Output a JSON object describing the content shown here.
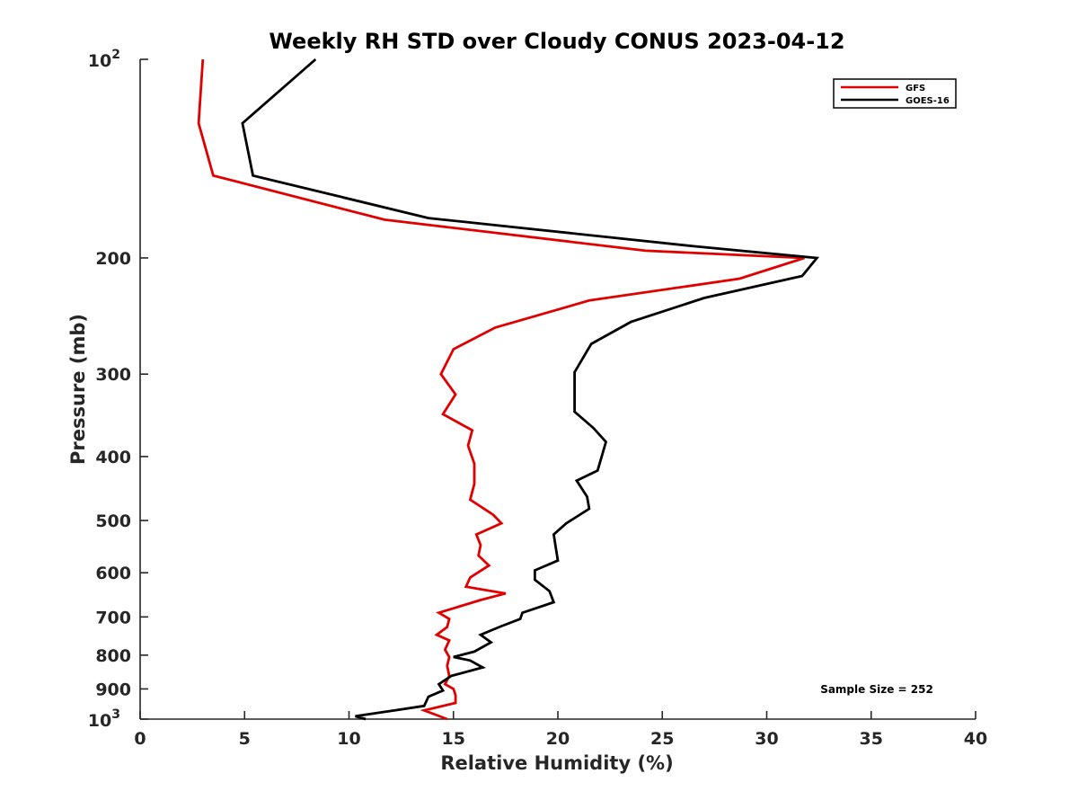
{
  "chart_data": {
    "type": "line",
    "title": "Weekly RH STD over Cloudy CONUS 2023-04-12",
    "xlabel": "Relative Humidity (%)",
    "ylabel": "Pressure (mb)",
    "xlim": [
      0,
      40
    ],
    "ylim": [
      100,
      1000
    ],
    "y_scale": "log",
    "y_reversed": true,
    "grid": false,
    "legend_position": "top-right",
    "x_ticks": [
      0,
      5,
      10,
      15,
      20,
      25,
      30,
      35,
      40
    ],
    "y_ticks": [
      {
        "value": 100,
        "label": "10",
        "exp": "2"
      },
      {
        "value": 200,
        "label": "200"
      },
      {
        "value": 300,
        "label": "300"
      },
      {
        "value": 400,
        "label": "400"
      },
      {
        "value": 500,
        "label": "500"
      },
      {
        "value": 600,
        "label": "600"
      },
      {
        "value": 700,
        "label": "700"
      },
      {
        "value": 800,
        "label": "800"
      },
      {
        "value": 900,
        "label": "900"
      },
      {
        "value": 1000,
        "label": "10",
        "exp": "3"
      }
    ],
    "annotation": "Sample Size = 252",
    "series": [
      {
        "name": "GFS",
        "color": "#e00000",
        "points": [
          [
            3.0,
            100
          ],
          [
            2.8,
            125
          ],
          [
            3.5,
            150
          ],
          [
            11.7,
            175
          ],
          [
            24.2,
            195
          ],
          [
            31.8,
            200
          ],
          [
            28.7,
            215
          ],
          [
            21.5,
            232
          ],
          [
            17.0,
            255
          ],
          [
            15.0,
            275
          ],
          [
            14.4,
            300
          ],
          [
            15.1,
            322
          ],
          [
            14.5,
            345
          ],
          [
            15.9,
            365
          ],
          [
            15.7,
            385
          ],
          [
            16.0,
            410
          ],
          [
            16.0,
            440
          ],
          [
            15.8,
            465
          ],
          [
            16.9,
            490
          ],
          [
            17.3,
            505
          ],
          [
            16.1,
            525
          ],
          [
            16.3,
            545
          ],
          [
            16.2,
            565
          ],
          [
            16.7,
            585
          ],
          [
            15.8,
            610
          ],
          [
            15.6,
            630
          ],
          [
            17.5,
            645
          ],
          [
            16.3,
            660
          ],
          [
            14.3,
            690
          ],
          [
            14.8,
            705
          ],
          [
            14.7,
            725
          ],
          [
            14.2,
            745
          ],
          [
            14.8,
            760
          ],
          [
            14.6,
            785
          ],
          [
            14.8,
            805
          ],
          [
            14.7,
            830
          ],
          [
            14.8,
            860
          ],
          [
            14.6,
            885
          ],
          [
            15.0,
            900
          ],
          [
            15.1,
            920
          ],
          [
            15.1,
            945
          ],
          [
            13.6,
            970
          ],
          [
            14.7,
            1000
          ]
        ]
      },
      {
        "name": "GOES-16",
        "color": "#000000",
        "points": [
          [
            8.4,
            100
          ],
          [
            4.9,
            125
          ],
          [
            5.4,
            150
          ],
          [
            13.8,
            174
          ],
          [
            26.5,
            192
          ],
          [
            32.4,
            200
          ],
          [
            31.7,
            213
          ],
          [
            27.0,
            230
          ],
          [
            23.5,
            250
          ],
          [
            21.6,
            270
          ],
          [
            20.8,
            298
          ],
          [
            20.8,
            320
          ],
          [
            20.8,
            342
          ],
          [
            21.7,
            362
          ],
          [
            22.3,
            380
          ],
          [
            22.1,
            400
          ],
          [
            21.9,
            420
          ],
          [
            20.9,
            435
          ],
          [
            21.4,
            460
          ],
          [
            21.5,
            480
          ],
          [
            20.4,
            505
          ],
          [
            19.8,
            525
          ],
          [
            19.9,
            550
          ],
          [
            20.0,
            575
          ],
          [
            18.9,
            595
          ],
          [
            18.9,
            615
          ],
          [
            19.6,
            640
          ],
          [
            19.8,
            665
          ],
          [
            18.3,
            690
          ],
          [
            18.2,
            705
          ],
          [
            17.2,
            725
          ],
          [
            16.3,
            745
          ],
          [
            16.8,
            765
          ],
          [
            16.0,
            790
          ],
          [
            15.0,
            805
          ],
          [
            15.8,
            815
          ],
          [
            16.4,
            835
          ],
          [
            14.9,
            860
          ],
          [
            14.3,
            885
          ],
          [
            14.5,
            905
          ],
          [
            13.8,
            925
          ],
          [
            13.6,
            955
          ],
          [
            12.2,
            970
          ],
          [
            10.3,
            990
          ],
          [
            10.8,
            1000
          ]
        ]
      }
    ]
  }
}
